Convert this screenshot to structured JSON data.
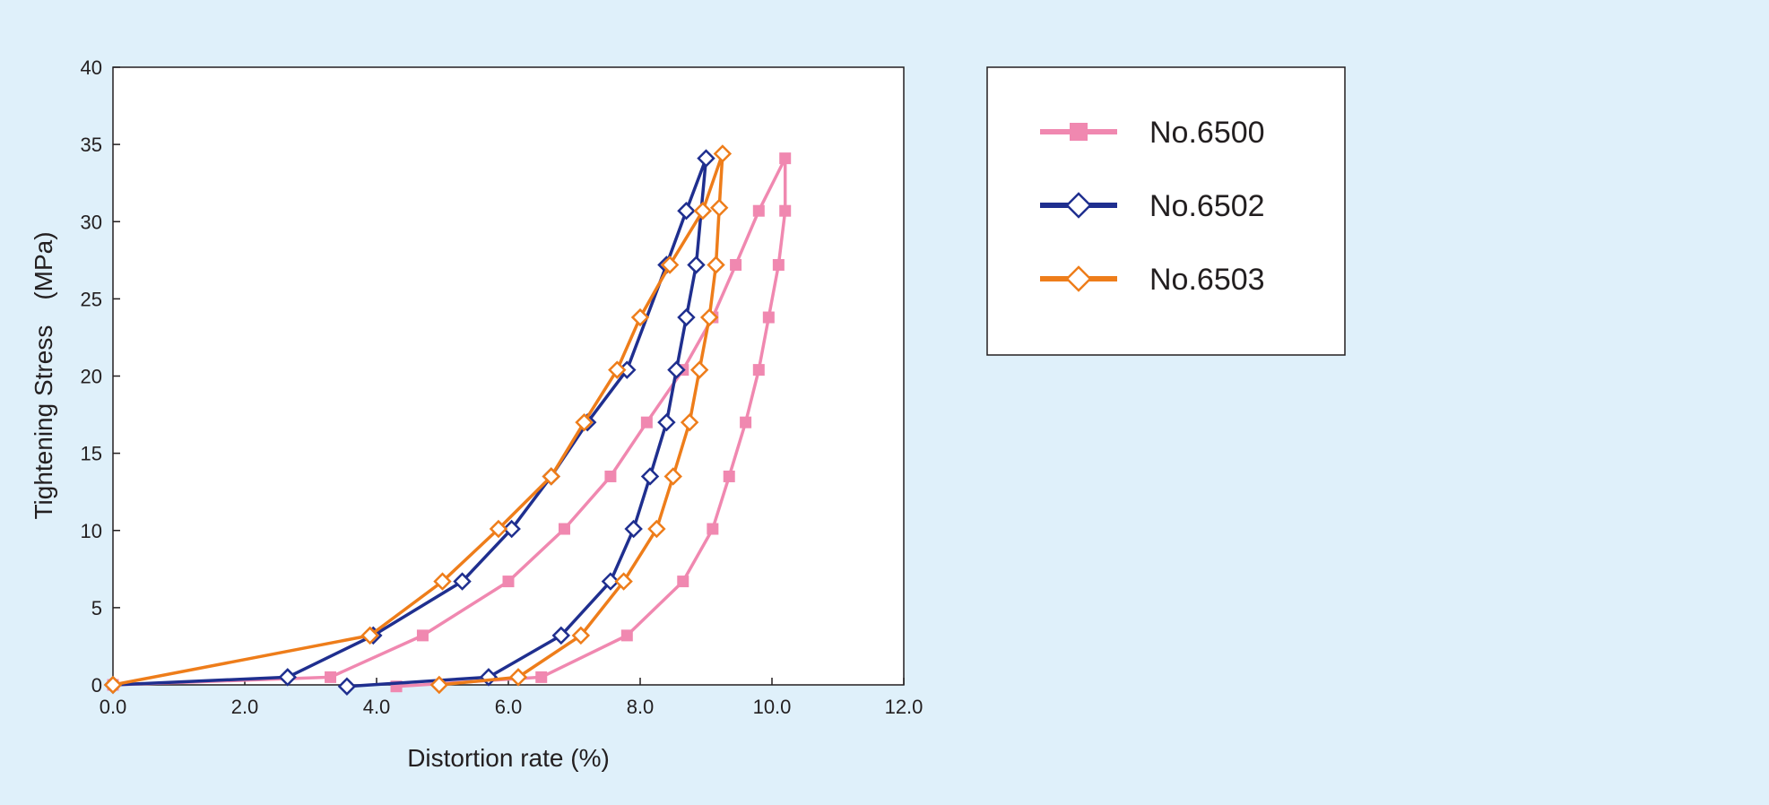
{
  "chart_data": {
    "type": "line",
    "xlabel": "Distortion rate (%)",
    "ylabel": "Tightening Stress　(MPa)",
    "xlim": [
      0,
      12
    ],
    "ylim": [
      0,
      40
    ],
    "x_ticks": [
      "0.0",
      "2.0",
      "4.0",
      "6.0",
      "8.0",
      "10.0",
      "12.0"
    ],
    "y_ticks": [
      "0",
      "5",
      "10",
      "15",
      "20",
      "25",
      "30",
      "35",
      "40"
    ],
    "grid": false,
    "legend_position": "right, outside plot",
    "series": [
      {
        "name": "No.6500",
        "color": "#f088b0",
        "marker": "square-filled",
        "x": [
          0,
          3.3,
          4.7,
          6.0,
          6.85,
          7.55,
          8.1,
          8.65,
          9.1,
          9.45,
          9.8,
          10.2,
          10.2,
          10.1,
          9.95,
          9.8,
          9.6,
          9.35,
          9.1,
          8.65,
          7.8,
          6.5,
          4.3
        ],
        "y": [
          0,
          0.5,
          3.2,
          6.7,
          10.1,
          13.5,
          17.0,
          20.4,
          23.8,
          27.2,
          30.7,
          34.1,
          30.7,
          27.2,
          23.8,
          20.4,
          17.0,
          13.5,
          10.1,
          6.7,
          3.2,
          0.5,
          -0.1
        ]
      },
      {
        "name": "No.6502",
        "color": "#1f2f8f",
        "marker": "diamond-open",
        "x": [
          0,
          2.65,
          3.95,
          5.3,
          6.05,
          6.65,
          7.2,
          7.8,
          8.4,
          8.7,
          9.0,
          8.85,
          8.7,
          8.55,
          8.4,
          8.15,
          7.9,
          7.55,
          6.8,
          5.7,
          3.55
        ],
        "y": [
          0,
          0.5,
          3.2,
          6.7,
          10.1,
          13.5,
          17.0,
          20.4,
          27.2,
          30.7,
          34.1,
          27.2,
          23.8,
          20.4,
          17.0,
          13.5,
          10.1,
          6.7,
          3.2,
          0.5,
          -0.1
        ]
      },
      {
        "name": "No.6503",
        "color": "#ee7d1a",
        "marker": "diamond-open",
        "x": [
          0,
          3.9,
          5.0,
          5.85,
          6.65,
          7.15,
          7.65,
          8.0,
          8.45,
          8.95,
          9.25,
          9.2,
          9.15,
          9.05,
          8.9,
          8.75,
          8.5,
          8.25,
          7.75,
          7.1,
          6.15,
          4.95
        ],
        "y": [
          0,
          3.2,
          6.7,
          10.1,
          13.5,
          17.0,
          20.4,
          23.8,
          27.2,
          30.7,
          34.4,
          30.9,
          27.2,
          23.8,
          20.4,
          17.0,
          13.5,
          10.1,
          6.7,
          3.2,
          0.5,
          0
        ]
      }
    ]
  }
}
